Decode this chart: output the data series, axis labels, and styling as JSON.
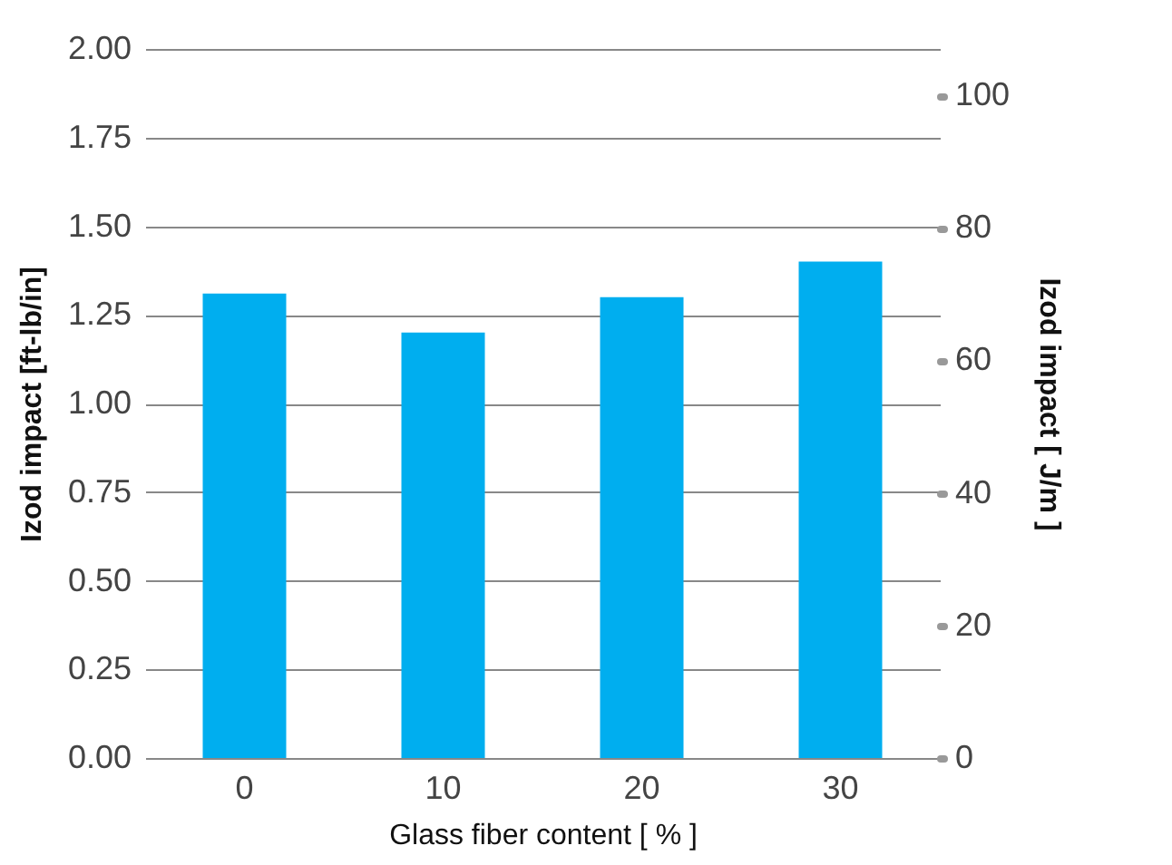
{
  "chart_data": {
    "type": "bar",
    "categories": [
      "0",
      "10",
      "20",
      "30"
    ],
    "values": [
      1.31,
      1.2,
      1.3,
      1.4
    ],
    "color": "#00aeef",
    "xlabel": "Glass fiber content [ % ]",
    "ylabel": "Izod impact [ft-lb/in]",
    "y2label": "Izod impact [ J/m ]",
    "ylim": [
      0,
      2
    ],
    "yticks": [
      {
        "value": 0,
        "label": "0.00"
      },
      {
        "value": 0.25,
        "label": "0.25"
      },
      {
        "value": 0.5,
        "label": "0.50"
      },
      {
        "value": 0.75,
        "label": "0.75"
      },
      {
        "value": 1,
        "label": "1.00"
      },
      {
        "value": 1.25,
        "label": "1.25"
      },
      {
        "value": 1.5,
        "label": "1.50"
      },
      {
        "value": 1.75,
        "label": "1.75"
      },
      {
        "value": 2,
        "label": "2.00"
      }
    ],
    "y2lim": [
      0,
      107
    ],
    "y2ticks": [
      0,
      20,
      40,
      60,
      80,
      100
    ],
    "grid": "y"
  }
}
